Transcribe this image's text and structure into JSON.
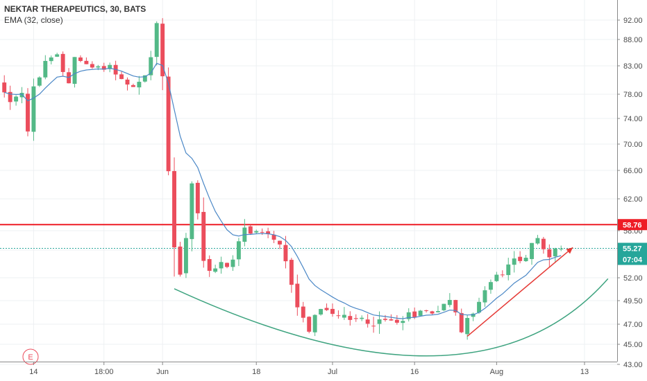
{
  "legend": {
    "title": "NEKTAR THERAPEUTICS, 30, BATS",
    "indicator": "EMA (32, close)"
  },
  "earnings_marker": {
    "label": "E"
  },
  "colors": {
    "up": "#53b987",
    "down": "#eb4d5c",
    "ema": "#4a87c6",
    "resistance": "#ee1c25",
    "curve": "#3da37f",
    "trend_arrow": "#e53935",
    "last_price_line": "#26a69a",
    "grid": "#eef0f3",
    "axis": "#888888"
  },
  "chart_data": {
    "type": "candlestick",
    "title": "",
    "y_ticks": [
      43.0,
      45.0,
      47.0,
      49.5,
      52.0,
      55.0,
      58.0,
      62.0,
      66.0,
      70.0,
      74.0,
      78.0,
      83.0,
      88.0,
      92.0
    ],
    "y_tick_labels": [
      "43.00",
      "45.00",
      "47.00",
      "49.50",
      "52.00",
      "55.00",
      "58.00",
      "62.00",
      "66.00",
      "70.00",
      "74.00",
      "78.00",
      "83.00",
      "88.00",
      "92.00"
    ],
    "x_ticks": [
      "14",
      "18:00",
      "Jun",
      "18",
      "Jul",
      "16",
      "Aug",
      "13"
    ],
    "x_tick_bar_index": [
      5,
      17,
      27,
      43,
      56,
      70,
      84,
      99
    ],
    "total_bars": 104,
    "horizontal_levels": [
      {
        "value": 58.76,
        "label": "58.76"
      }
    ],
    "last_price": {
      "value": 55.27,
      "label": "55.27",
      "countdown": "07:04"
    },
    "curve": {
      "start": [
        29,
        50.8
      ],
      "min": [
        59,
        44.6
      ],
      "end": [
        103,
        51.9
      ]
    },
    "trend_arrow": {
      "start": [
        79,
        45.8
      ],
      "end": [
        97,
        55.4
      ]
    },
    "price_path": [
      [
        0,
        80.0
      ],
      [
        2,
        77.0
      ],
      [
        4,
        78.5
      ],
      [
        5,
        72.0
      ],
      [
        6,
        79.0
      ],
      [
        8,
        83.5
      ],
      [
        10,
        85.0
      ],
      [
        11,
        82.0
      ],
      [
        12,
        80.0
      ],
      [
        13,
        85.0
      ],
      [
        15,
        83.0
      ],
      [
        17,
        82.5
      ],
      [
        19,
        83.0
      ],
      [
        21,
        80.5
      ],
      [
        23,
        79.0
      ],
      [
        25,
        81.0
      ],
      [
        26,
        84.5
      ],
      [
        27,
        91.0
      ],
      [
        28,
        81.0
      ],
      [
        29,
        66.0
      ],
      [
        30,
        55.0
      ],
      [
        31,
        52.5
      ],
      [
        32,
        57.0
      ],
      [
        33,
        64.5
      ],
      [
        34,
        60.0
      ],
      [
        35,
        54.0
      ],
      [
        36,
        53.0
      ],
      [
        37,
        52.8
      ],
      [
        38,
        53.5
      ],
      [
        39,
        53.5
      ],
      [
        40,
        54.0
      ],
      [
        41,
        56.5
      ],
      [
        42,
        58.0
      ],
      [
        44,
        57.5
      ],
      [
        46,
        57.2
      ],
      [
        48,
        55.5
      ],
      [
        50,
        51.5
      ],
      [
        51,
        49.0
      ],
      [
        52,
        47.5
      ],
      [
        53,
        46.5
      ],
      [
        54,
        48.0
      ],
      [
        56,
        48.5
      ],
      [
        58,
        47.8
      ],
      [
        60,
        47.3
      ],
      [
        62,
        47.5
      ],
      [
        64,
        47.2
      ],
      [
        66,
        47.3
      ],
      [
        68,
        47.5
      ],
      [
        70,
        48.0
      ],
      [
        72,
        48.3
      ],
      [
        74,
        48.5
      ],
      [
        76,
        49.0
      ],
      [
        77,
        49.4
      ],
      [
        78,
        48.5
      ],
      [
        79,
        46.3
      ],
      [
        80,
        47.3
      ],
      [
        82,
        49.5
      ],
      [
        84,
        51.5
      ],
      [
        86,
        52.5
      ],
      [
        88,
        53.8
      ],
      [
        90,
        54.5
      ],
      [
        91,
        55.8
      ],
      [
        92,
        56.5
      ],
      [
        93,
        55.2
      ],
      [
        94,
        54.0
      ],
      [
        95,
        55.4
      ],
      [
        95.5,
        55.27
      ]
    ]
  }
}
